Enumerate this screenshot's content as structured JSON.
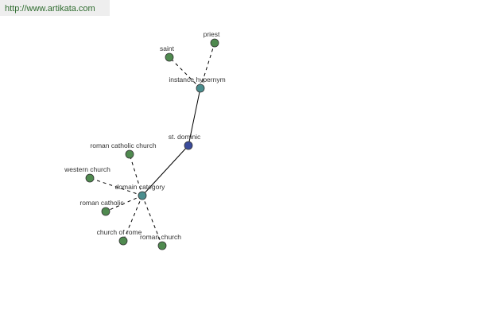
{
  "header": {
    "url": "http://www.artikata.com"
  },
  "nodes": [
    {
      "label": "st. dominic"
    },
    {
      "label": "instance hypernym"
    },
    {
      "label": "priest"
    },
    {
      "label": "saint"
    },
    {
      "label": "domain category"
    },
    {
      "label": "roman catholic church"
    },
    {
      "label": "western church"
    },
    {
      "label": "roman catholic"
    },
    {
      "label": "church of rome"
    },
    {
      "label": "roman church"
    }
  ]
}
